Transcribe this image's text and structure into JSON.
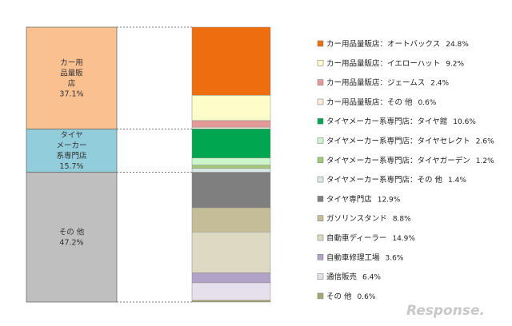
{
  "chart_data": [
    {
      "type": "bar",
      "stacked": true,
      "segments": [
        {
          "lines": [
            "カー用",
            "品量販",
            "店"
          ],
          "value": 37.1,
          "value_text": "37.1%",
          "color": "#fac090"
        },
        {
          "lines": [
            "タイヤ",
            "メーカー",
            "系専門店"
          ],
          "value": 15.7,
          "value_text": "15.7%",
          "color": "#92cddc"
        },
        {
          "lines": [
            "その 他"
          ],
          "value": 47.2,
          "value_text": "47.2%",
          "color": "#bfbfbf"
        }
      ]
    },
    {
      "type": "bar",
      "stacked": true,
      "segments": [
        {
          "label": "カー用品量販店：オートバックス",
          "value": 24.8,
          "value_text": "24.8%",
          "color": "#ed6d0f"
        },
        {
          "label": "カー用品量販店：イエローハット",
          "value": 9.2,
          "value_text": "9.2%",
          "color": "#fefcc8"
        },
        {
          "label": "カー用品量販店：ジェームス",
          "value": 2.4,
          "value_text": "2.4%",
          "color": "#e59a9a"
        },
        {
          "label": "カー用品量販店：その 他",
          "value": 0.6,
          "value_text": "0.6%",
          "color": "#fde9d9"
        },
        {
          "label": "タイヤメーカー系専門店：タイヤ館",
          "value": 10.6,
          "value_text": "10.6%",
          "color": "#00a650"
        },
        {
          "label": "タイヤメーカー系専門店：タイヤセレクト",
          "value": 2.6,
          "value_text": "2.6%",
          "color": "#ccf5cc"
        },
        {
          "label": "タイヤメーカー系専門店：タイヤガーデン",
          "value": 1.2,
          "value_text": "1.2%",
          "color": "#a5c878"
        },
        {
          "label": "タイヤメーカー系専門店：その 他",
          "value": 1.4,
          "value_text": "1.4%",
          "color": "#d8e8e4"
        },
        {
          "label": "タイヤ専門店",
          "value": 12.9,
          "value_text": "12.9%",
          "color": "#7f7f7f"
        },
        {
          "label": "ガソリンスタンド",
          "value": 8.8,
          "value_text": "8.8%",
          "color": "#c4bd97"
        },
        {
          "label": "自動車ディーラー",
          "value": 14.9,
          "value_text": "14.9%",
          "color": "#ddd9c3"
        },
        {
          "label": "自動車修理工場",
          "value": 3.6,
          "value_text": "3.6%",
          "color": "#b3a2c7"
        },
        {
          "label": "通信販売",
          "value": 6.4,
          "value_text": "6.4%",
          "color": "#e6e0ec"
        },
        {
          "label": "その 他",
          "value": 0.6,
          "value_text": "0.6%",
          "color": "#a6a66f"
        }
      ]
    }
  ],
  "watermark": "Response."
}
